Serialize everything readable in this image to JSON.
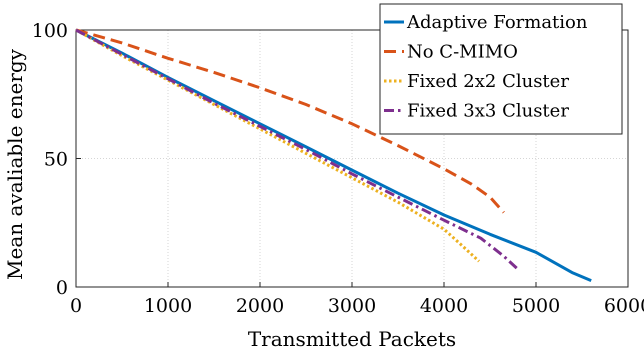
{
  "chart_data": {
    "type": "line",
    "title": "",
    "xlabel": "Transmitted Packets",
    "ylabel": "Mean avaliable energy",
    "xlim": [
      0,
      6000
    ],
    "ylim": [
      0,
      100
    ],
    "xticks": [
      0,
      1000,
      2000,
      3000,
      4000,
      5000,
      6000
    ],
    "yticks": [
      0,
      50,
      100
    ],
    "grid": true,
    "legend_position": "top-right",
    "series": [
      {
        "name": "Adaptive Formation",
        "color": "#0072BD",
        "line_style": "solid",
        "x": [
          0,
          500,
          1000,
          1500,
          2000,
          2500,
          3000,
          3500,
          4000,
          4500,
          5000,
          5400,
          5600
        ],
        "y": [
          100,
          91,
          81.5,
          72.5,
          63.5,
          54.5,
          45.5,
          36.5,
          28,
          20.5,
          13.5,
          5.5,
          2.5
        ]
      },
      {
        "name": "No C-MIMO",
        "color": "#D95319",
        "line_style": "dashed",
        "x": [
          0,
          500,
          1000,
          1500,
          2000,
          2500,
          3000,
          3500,
          4000,
          4300,
          4500,
          4650
        ],
        "y": [
          100,
          95,
          89,
          83.5,
          77.5,
          71,
          63.5,
          55,
          46,
          40,
          35,
          29
        ]
      },
      {
        "name": "Fixed 2x2 Cluster",
        "color": "#EDB120",
        "line_style": "dotted",
        "x": [
          0,
          500,
          1000,
          1500,
          2000,
          2500,
          3000,
          3500,
          4000,
          4200,
          4380
        ],
        "y": [
          100,
          90,
          80.5,
          71,
          61.5,
          52,
          42.5,
          33,
          22.5,
          16,
          10
        ]
      },
      {
        "name": "Fixed 3x3 Cluster",
        "color": "#7E2F8E",
        "line_style": "dashdot",
        "x": [
          0,
          500,
          1000,
          1500,
          2000,
          2500,
          3000,
          3500,
          4000,
          4400,
          4650,
          4800
        ],
        "y": [
          100,
          90.5,
          81,
          71.5,
          62.5,
          53.5,
          44,
          35,
          26,
          19,
          12,
          7
        ]
      }
    ]
  }
}
